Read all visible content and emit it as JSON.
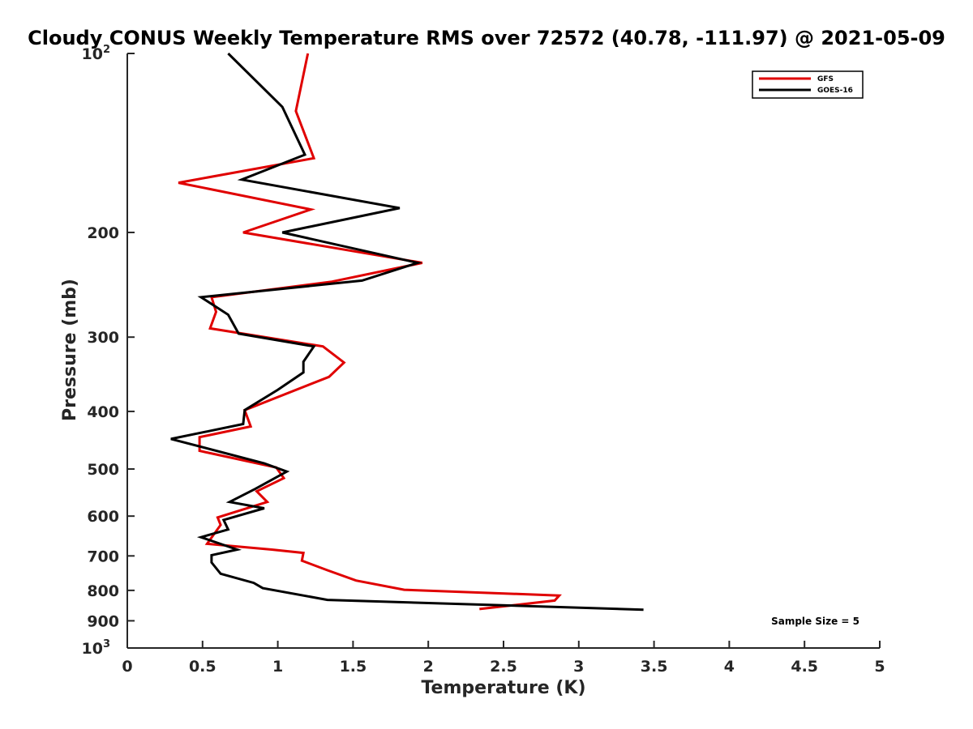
{
  "chart_data": {
    "type": "line",
    "title": "Cloudy CONUS Weekly Temperature RMS over 72572 (40.78, -111.97) @ 2021-05-09",
    "xlabel": "Temperature (K)",
    "ylabel": "Pressure (mb)",
    "xlim": [
      0,
      5
    ],
    "ylim": [
      100,
      1000
    ],
    "yscale": "log",
    "y_reversed": true,
    "grid": false,
    "legend_position": "top-right",
    "x_ticks": [
      0,
      0.5,
      1,
      1.5,
      2,
      2.5,
      3,
      3.5,
      4,
      4.5,
      5
    ],
    "x_tick_labels": [
      "0",
      "0.5",
      "1",
      "1.5",
      "2",
      "2.5",
      "3",
      "3.5",
      "4",
      "4.5",
      "5"
    ],
    "y_ticks": [
      {
        "value": 100,
        "base": "10",
        "exp": "2"
      },
      {
        "value": 200,
        "base": "200",
        "exp": ""
      },
      {
        "value": 300,
        "base": "300",
        "exp": ""
      },
      {
        "value": 400,
        "base": "400",
        "exp": ""
      },
      {
        "value": 500,
        "base": "500",
        "exp": ""
      },
      {
        "value": 600,
        "base": "600",
        "exp": ""
      },
      {
        "value": 700,
        "base": "700",
        "exp": ""
      },
      {
        "value": 800,
        "base": "800",
        "exp": ""
      },
      {
        "value": 900,
        "base": "900",
        "exp": ""
      },
      {
        "value": 1000,
        "base": "10",
        "exp": "3"
      }
    ],
    "annotation": "Sample Size = 5",
    "series": [
      {
        "name": "GFS",
        "color": "#e00000",
        "points": [
          [
            1.2,
            100
          ],
          [
            1.12,
            125
          ],
          [
            1.24,
            150
          ],
          [
            0.34,
            165
          ],
          [
            1.22,
            183
          ],
          [
            0.77,
            200
          ],
          [
            1.96,
            225
          ],
          [
            1.36,
            242
          ],
          [
            0.56,
            257
          ],
          [
            0.59,
            272
          ],
          [
            0.55,
            290
          ],
          [
            1.3,
            311
          ],
          [
            1.44,
            331
          ],
          [
            1.34,
            350
          ],
          [
            0.78,
            398
          ],
          [
            0.82,
            424
          ],
          [
            0.48,
            442
          ],
          [
            0.48,
            466
          ],
          [
            0.99,
            497
          ],
          [
            1.04,
            518
          ],
          [
            0.86,
            545
          ],
          [
            0.93,
            568
          ],
          [
            0.6,
            603
          ],
          [
            0.62,
            621
          ],
          [
            0.53,
            668
          ],
          [
            0.96,
            683
          ],
          [
            1.17,
            692
          ],
          [
            1.16,
            713
          ],
          [
            1.33,
            740
          ],
          [
            1.52,
            770
          ],
          [
            1.84,
            798
          ],
          [
            2.87,
            816
          ],
          [
            2.84,
            832
          ],
          [
            2.34,
            860
          ]
        ]
      },
      {
        "name": "GOES-16",
        "color": "#000000",
        "points": [
          [
            0.67,
            100
          ],
          [
            1.03,
            123
          ],
          [
            1.18,
            148
          ],
          [
            0.76,
            163
          ],
          [
            1.81,
            182
          ],
          [
            1.03,
            200
          ],
          [
            1.93,
            225
          ],
          [
            1.56,
            241
          ],
          [
            0.49,
            257
          ],
          [
            0.67,
            275
          ],
          [
            0.74,
            296
          ],
          [
            1.24,
            311
          ],
          [
            1.17,
            330
          ],
          [
            1.17,
            344
          ],
          [
            1.0,
            368
          ],
          [
            0.78,
            398
          ],
          [
            0.77,
            420
          ],
          [
            0.29,
            445
          ],
          [
            0.91,
            489
          ],
          [
            1.06,
            505
          ],
          [
            0.85,
            540
          ],
          [
            0.68,
            568
          ],
          [
            0.91,
            582
          ],
          [
            0.64,
            609
          ],
          [
            0.67,
            632
          ],
          [
            0.49,
            651
          ],
          [
            0.73,
            683
          ],
          [
            0.56,
            698
          ],
          [
            0.56,
            718
          ],
          [
            0.62,
            750
          ],
          [
            0.84,
            777
          ],
          [
            0.9,
            793
          ],
          [
            1.33,
            830
          ],
          [
            3.43,
            862
          ]
        ]
      }
    ]
  }
}
